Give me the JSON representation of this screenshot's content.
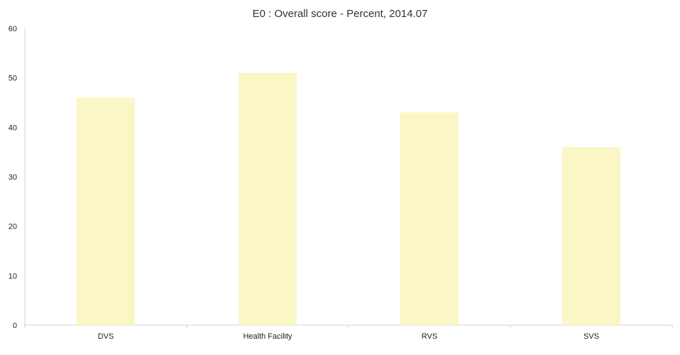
{
  "chart_data": {
    "type": "bar",
    "title": "E0 : Overall score - Percent, 2014.07",
    "xlabel": "",
    "ylabel": "",
    "categories": [
      "DVS",
      "Health Facility",
      "RVS",
      "SVS"
    ],
    "values": [
      46,
      51,
      43,
      36
    ],
    "ylim": [
      0,
      60
    ],
    "yticks": [
      0,
      10,
      20,
      30,
      40,
      50,
      60
    ],
    "grid": false,
    "legend": "none",
    "bar_color": "#faf6c6"
  }
}
